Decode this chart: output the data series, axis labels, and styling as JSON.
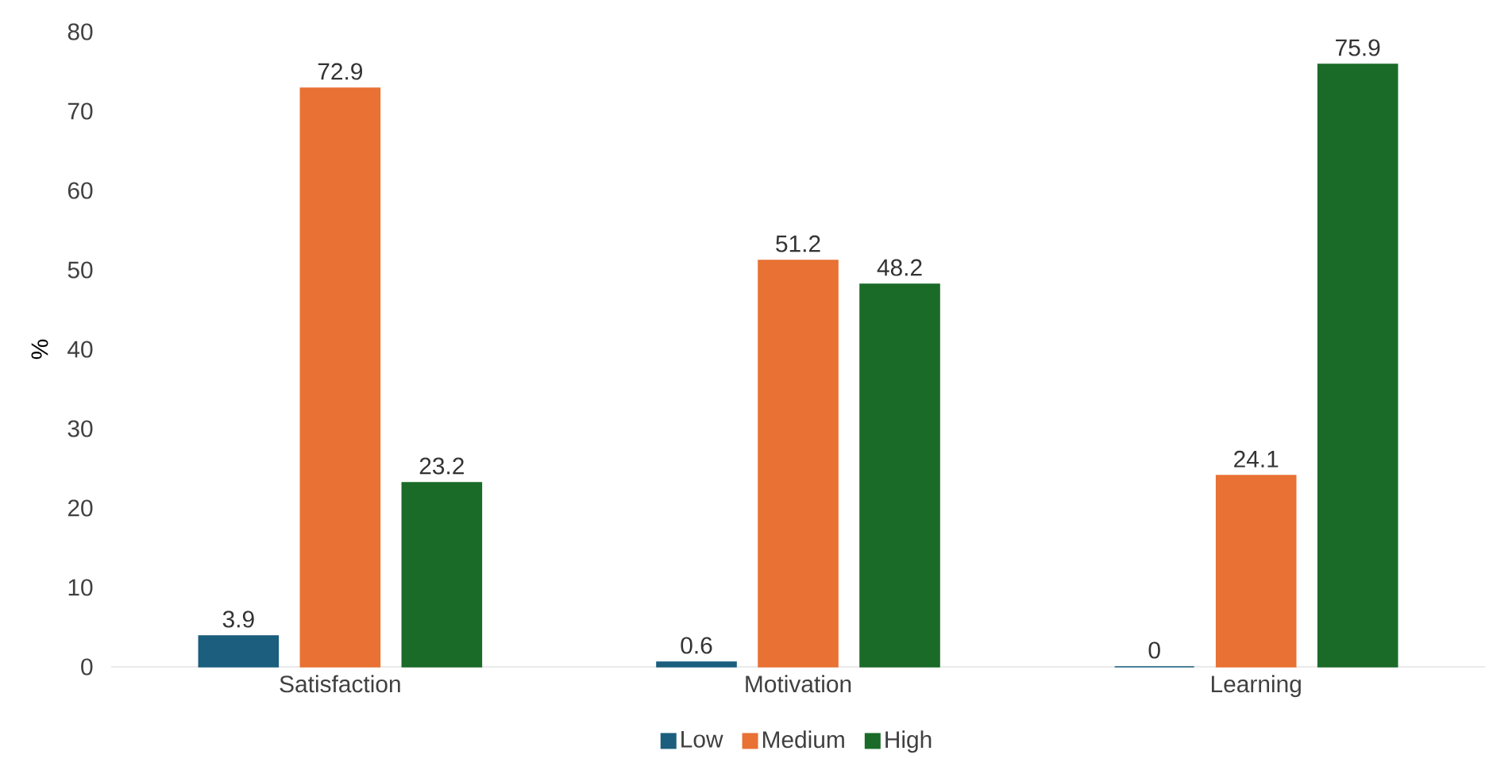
{
  "chart_data": {
    "type": "bar",
    "ylabel": "%",
    "categories": [
      "Satisfaction",
      "Motivation",
      "Learning"
    ],
    "series": [
      {
        "name": "Low",
        "color": "#1b5e7e",
        "values": [
          3.9,
          0.6,
          0
        ],
        "value_labels": [
          "3.9",
          "0.6",
          "0"
        ]
      },
      {
        "name": "Medium",
        "color": "#e87133",
        "values": [
          72.9,
          51.2,
          24.1
        ],
        "value_labels": [
          "72.9",
          "51.2",
          "24.1"
        ]
      },
      {
        "name": "High",
        "color": "#1a6b28",
        "values": [
          23.2,
          48.2,
          75.9
        ],
        "value_labels": [
          "23.2",
          "48.2",
          "75.9"
        ]
      }
    ],
    "ylim": [
      0,
      80
    ],
    "yticks": [
      0,
      10,
      20,
      30,
      40,
      50,
      60,
      70,
      80
    ],
    "legend": "bottom",
    "grid": false
  }
}
